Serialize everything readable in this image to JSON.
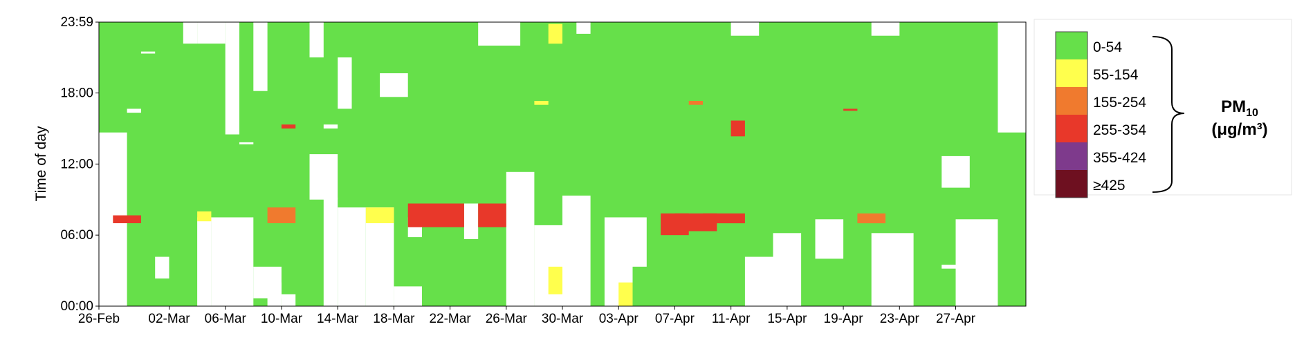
{
  "chart_data": {
    "type": "heatmap",
    "ylabel": "Time of day",
    "y_ticks": [
      "00:00",
      "06:00",
      "12:00",
      "18:00",
      "23:59"
    ],
    "x_ticks": [
      "26-Feb",
      "02-Mar",
      "06-Mar",
      "10-Mar",
      "14-Mar",
      "18-Mar",
      "22-Mar",
      "26-Mar",
      "30-Mar",
      "03-Apr",
      "07-Apr",
      "11-Apr",
      "15-Apr",
      "19-Apr",
      "23-Apr",
      "27-Apr"
    ],
    "x_range": [
      "26-Feb",
      "01-May"
    ],
    "y_range": [
      "00:00",
      "23:59"
    ],
    "legend": {
      "title": "PM",
      "title_subscript": "10",
      "unit": "(μg/m³)",
      "position": "right",
      "entries": [
        {
          "label": "0-54",
          "color": "#66e04a"
        },
        {
          "label": "55-154",
          "color": "#ffff4d"
        },
        {
          "label": "155-254",
          "color": "#f07a2e"
        },
        {
          "label": "255-354",
          "color": "#e8382a"
        },
        {
          "label": "355-424",
          "color": "#7e3a8c"
        },
        {
          "label": "≥425",
          "color": "#6e1020"
        }
      ]
    },
    "background_category": "0-54",
    "missing": [
      {
        "start": "26-Feb 00:00",
        "end": "27-Feb 14:40"
      },
      {
        "start": "28-Feb 16:20",
        "end": "28-Feb 16:40"
      },
      {
        "start": "29-Feb 21:20",
        "end": "29-Feb 21:30"
      },
      {
        "start": "01-Mar 02:20",
        "end": "01-Mar 04:10"
      },
      {
        "start": "03-Mar 22:10",
        "end": "03-Mar 23:59"
      },
      {
        "start": "04-Mar 00:00",
        "end": "04-Mar 07:30"
      },
      {
        "start": "04-Mar 22:10",
        "end": "05-Mar 23:59"
      },
      {
        "start": "05-Mar 00:00",
        "end": "06-Mar 07:30"
      },
      {
        "start": "06-Mar 14:30",
        "end": "06-Mar 23:59"
      },
      {
        "start": "07-Mar 00:00",
        "end": "07-Mar 07:30"
      },
      {
        "start": "07-Mar 13:40",
        "end": "07-Mar 13:50"
      },
      {
        "start": "08-Mar 18:10",
        "end": "08-Mar 23:59"
      },
      {
        "start": "08-Mar 00:40",
        "end": "09-Mar 03:20"
      },
      {
        "start": "09-Mar 00:00",
        "end": "09-Mar 02:00"
      },
      {
        "start": "10-Mar 00:00",
        "end": "10-Mar 01:00"
      },
      {
        "start": "12-Mar 21:00",
        "end": "12-Mar 23:59"
      },
      {
        "start": "12-Mar 09:00",
        "end": "13-Mar 12:50"
      },
      {
        "start": "13-Mar 00:00",
        "end": "13-Mar 09:10"
      },
      {
        "start": "13-Mar 15:00",
        "end": "13-Mar 15:20"
      },
      {
        "start": "14-Mar 00:00",
        "end": "14-Mar 08:20"
      },
      {
        "start": "14-Mar 16:40",
        "end": "14-Mar 21:00"
      },
      {
        "start": "15-Mar 00:00",
        "end": "15-Mar 08:20"
      },
      {
        "start": "16-Mar 00:00",
        "end": "17-Mar 08:20"
      },
      {
        "start": "17-Mar 17:40",
        "end": "18-Mar 19:40"
      },
      {
        "start": "18-Mar 00:00",
        "end": "19-Mar 01:40"
      },
      {
        "start": "19-Mar 05:50",
        "end": "19-Mar 07:30"
      },
      {
        "start": "23-Mar 05:40",
        "end": "23-Mar 08:40"
      },
      {
        "start": "24-Mar 23:59",
        "end": "26-Mar 22:00"
      },
      {
        "start": "26-Mar 00:00",
        "end": "27-Mar 10:80"
      },
      {
        "start": "28-Mar 00:00",
        "end": "29-Mar 06:50"
      },
      {
        "start": "30-Mar 00:00",
        "end": "31-Mar 09:20"
      },
      {
        "start": "31-Mar 23:00",
        "end": "31-Mar 23:59"
      },
      {
        "start": "02-Apr 00:00",
        "end": "03-Apr 07:30"
      },
      {
        "start": "03-Apr 03:20",
        "end": "04-Apr 07:30"
      },
      {
        "start": "11-Apr 22:50",
        "end": "12-Apr 23:59"
      },
      {
        "start": "12-Apr 00:00",
        "end": "14-Apr 03:70"
      },
      {
        "start": "14-Apr 00:00",
        "end": "15-Apr 06:10"
      },
      {
        "start": "17-Apr 04:00",
        "end": "18-Apr 07:20"
      },
      {
        "start": "21-Apr 22:50",
        "end": "22-Apr 23:59"
      },
      {
        "start": "21-Apr 00:00",
        "end": "23-Apr 06:10"
      },
      {
        "start": "26-Apr 03:10",
        "end": "26-Apr 03:30"
      },
      {
        "start": "26-Apr 09:60",
        "end": "27-Apr 12:40"
      },
      {
        "start": "27-Apr 00:00",
        "end": "29-Apr 07:20"
      },
      {
        "start": "30-Apr 14:40",
        "end": "01-May 23:59"
      }
    ],
    "elevated": [
      {
        "start": "27-Feb 07:00",
        "end": "28-Feb 07:40",
        "category": "255-354"
      },
      {
        "start": "04-Mar 07:10",
        "end": "04-Mar 08:00",
        "category": "55-154"
      },
      {
        "start": "09-Mar 07:00",
        "end": "10-Mar 08:20",
        "category": "155-254"
      },
      {
        "start": "10-Mar 15:00",
        "end": "10-Mar 15:20",
        "category": "255-354"
      },
      {
        "start": "16-Mar 07:00",
        "end": "17-Mar 08:20",
        "category": "55-154"
      },
      {
        "start": "19-Mar 06:40",
        "end": "22-Mar 08:40",
        "category": "255-354"
      },
      {
        "start": "24-Mar 06:40",
        "end": "25-Mar 08:40",
        "category": "255-354"
      },
      {
        "start": "28-Mar 17:00",
        "end": "28-Mar 17:20",
        "category": "55-154"
      },
      {
        "start": "29-Mar 01:00",
        "end": "29-Mar 03:20",
        "category": "55-154"
      },
      {
        "start": "29-Mar 22:10",
        "end": "29-Mar 23:50",
        "category": "55-154"
      },
      {
        "start": "03-Apr 00:00",
        "end": "03-Apr 02:00",
        "category": "55-154"
      },
      {
        "start": "06-Apr 06:00",
        "end": "07-Apr 07:50",
        "category": "255-354"
      },
      {
        "start": "07-Apr 06:20",
        "end": "09-Apr 07:50",
        "category": "255-354"
      },
      {
        "start": "08-Apr 17:00",
        "end": "08-Apr 17:20",
        "category": "155-254"
      },
      {
        "start": "09-Apr 07:00",
        "end": "11-Apr 07:50",
        "category": "255-354"
      },
      {
        "start": "11-Apr 14:20",
        "end": "11-Apr 15:40",
        "category": "255-354"
      },
      {
        "start": "19-Apr 16:30",
        "end": "19-Apr 16:40",
        "category": "255-354"
      },
      {
        "start": "20-Apr 07:00",
        "end": "21-Apr 07:50",
        "category": "155-254"
      }
    ]
  }
}
